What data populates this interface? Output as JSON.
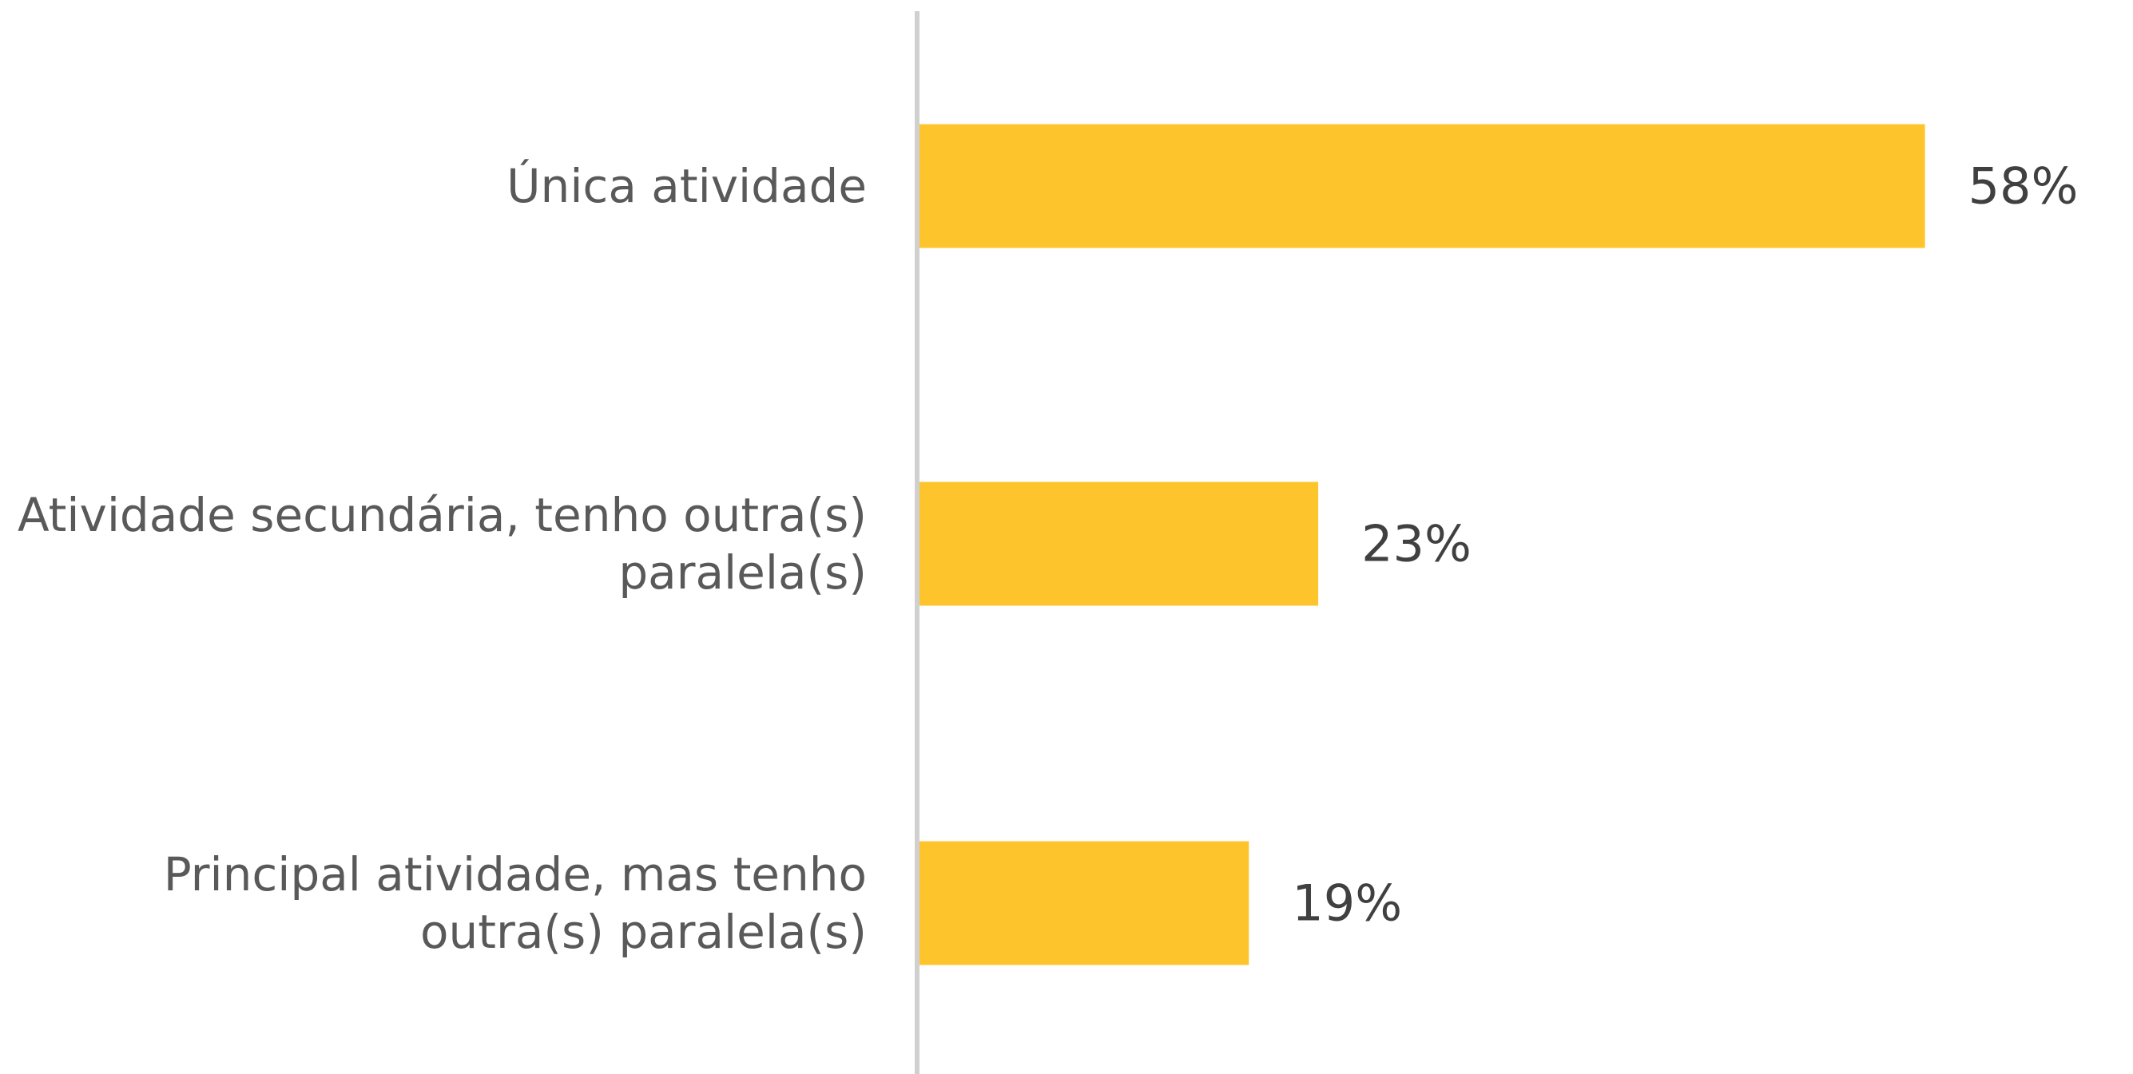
{
  "chart_data": {
    "type": "bar",
    "orientation": "horizontal",
    "categories": [
      "Única atividade",
      "Atividade secundária, tenho outra(s) paralela(s)",
      "Principal atividade, mas tenho outra(s) paralela(s)"
    ],
    "values": [
      58,
      23,
      19
    ],
    "value_labels": [
      "58%",
      "23%",
      "19%"
    ],
    "color": "#fdc52b",
    "xlim": [
      0,
      70
    ]
  }
}
